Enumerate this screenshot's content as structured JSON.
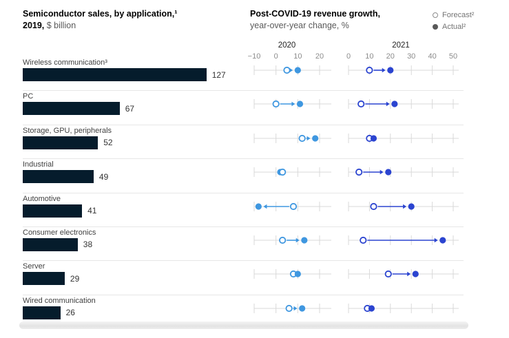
{
  "header": {
    "left_title_line1": "Semiconductor sales, by application,¹",
    "left_title_line2_bold": "2019,",
    "left_title_line2_rest": " $ billion",
    "right_title_line1": "Post-COVID-19 revenue growth,",
    "right_title_line2": "year-over-year change, %",
    "legend": {
      "forecast_label": "Forecast²",
      "actual_label": "Actual²"
    }
  },
  "colors": {
    "bar": "#051c2c",
    "panel_2020": "#3f97e0",
    "panel_2021": "#2b44d0",
    "axis_line": "#d9d9d9",
    "tick_label": "#8c8c8c"
  },
  "chart_data": {
    "type": "bar",
    "title": "Semiconductor sales, by application, 2019, $ billion",
    "secondary_title": "Post-COVID-19 revenue growth, year-over-year change, %",
    "legend": [
      "Forecast",
      "Actual"
    ],
    "panels": [
      {
        "year": "2020",
        "ticks": [
          -10,
          0,
          10,
          20
        ],
        "range": [
          -10,
          25
        ]
      },
      {
        "year": "2021",
        "ticks": [
          0,
          10,
          20,
          30,
          40,
          50
        ],
        "range": [
          0,
          52
        ]
      }
    ],
    "categories": [
      "Wireless communication³",
      "PC",
      "Storage, GPU, peripherals",
      "Industrial",
      "Automotive",
      "Consumer electronics",
      "Server",
      "Wired communication"
    ],
    "sales_2019_usd_bn": [
      127,
      67,
      52,
      49,
      41,
      38,
      29,
      26
    ],
    "rows": [
      {
        "category": "Wireless communication³",
        "sales_2019": 127,
        "growth_2020": {
          "forecast": 5,
          "actual": 10
        },
        "growth_2021": {
          "forecast": 10,
          "actual": 20
        }
      },
      {
        "category": "PC",
        "sales_2019": 67,
        "growth_2020": {
          "forecast": 0,
          "actual": 11
        },
        "growth_2021": {
          "forecast": 6,
          "actual": 22
        }
      },
      {
        "category": "Storage, GPU, peripherals",
        "sales_2019": 52,
        "growth_2020": {
          "forecast": 12,
          "actual": 18
        },
        "growth_2021": {
          "forecast": 10,
          "actual": 12
        }
      },
      {
        "category": "Industrial",
        "sales_2019": 49,
        "growth_2020": {
          "forecast": 3,
          "actual": 2
        },
        "growth_2021": {
          "forecast": 5,
          "actual": 19
        }
      },
      {
        "category": "Automotive",
        "sales_2019": 41,
        "growth_2020": {
          "forecast": 8,
          "actual": -8
        },
        "growth_2021": {
          "forecast": 12,
          "actual": 30
        }
      },
      {
        "category": "Consumer electronics",
        "sales_2019": 38,
        "growth_2020": {
          "forecast": 3,
          "actual": 13
        },
        "growth_2021": {
          "forecast": 7,
          "actual": 45
        }
      },
      {
        "category": "Server",
        "sales_2019": 29,
        "growth_2020": {
          "forecast": 8,
          "actual": 10
        },
        "growth_2021": {
          "forecast": 19,
          "actual": 32
        }
      },
      {
        "category": "Wired communication",
        "sales_2019": 26,
        "growth_2020": {
          "forecast": 6,
          "actual": 12
        },
        "growth_2021": {
          "forecast": 9,
          "actual": 11
        }
      }
    ]
  }
}
